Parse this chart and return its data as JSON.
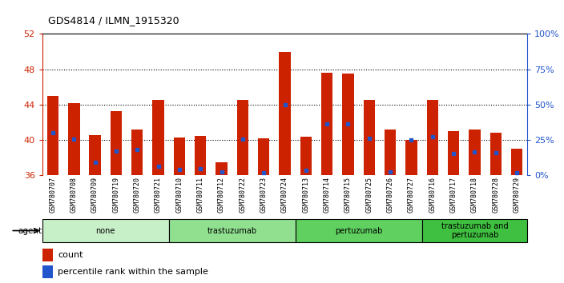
{
  "title": "GDS4814 / ILMN_1915320",
  "samples": [
    "GSM780707",
    "GSM780708",
    "GSM780709",
    "GSM780719",
    "GSM780720",
    "GSM780721",
    "GSM780710",
    "GSM780711",
    "GSM780712",
    "GSM780722",
    "GSM780723",
    "GSM780724",
    "GSM780713",
    "GSM780714",
    "GSM780715",
    "GSM780725",
    "GSM780726",
    "GSM780727",
    "GSM780716",
    "GSM780717",
    "GSM780718",
    "GSM780728",
    "GSM780729"
  ],
  "bar_heights": [
    45.0,
    44.2,
    40.6,
    43.3,
    41.2,
    44.5,
    40.3,
    40.5,
    37.5,
    44.5,
    40.2,
    50.0,
    40.4,
    47.6,
    47.5,
    44.5,
    41.2,
    40.0,
    44.5,
    41.0,
    41.2,
    40.8,
    39.0
  ],
  "blue_dot_heights": [
    40.8,
    40.1,
    37.5,
    38.8,
    38.9,
    37.0,
    36.7,
    36.8,
    36.4,
    40.1,
    36.3,
    44.0,
    36.6,
    41.8,
    41.8,
    40.2,
    36.4,
    40.0,
    40.4,
    38.5,
    38.7,
    38.6,
    36.3
  ],
  "groups": [
    {
      "label": "none",
      "start": 0,
      "end": 6,
      "color": "#c8f0c8"
    },
    {
      "label": "trastuzumab",
      "start": 6,
      "end": 12,
      "color": "#90e090"
    },
    {
      "label": "pertuzumab",
      "start": 12,
      "end": 18,
      "color": "#60d060"
    },
    {
      "label": "trastuzumab and\npertuzumab",
      "start": 18,
      "end": 23,
      "color": "#40c040"
    }
  ],
  "ylim_left": [
    36,
    52
  ],
  "yticks_left": [
    36,
    40,
    44,
    48,
    52
  ],
  "ylim_right": [
    0,
    100
  ],
  "yticks_right": [
    0,
    25,
    50,
    75,
    100
  ],
  "ytick_labels_right": [
    "0%",
    "25%",
    "50%",
    "75%",
    "100%"
  ],
  "bar_color": "#cc2200",
  "dot_color": "#2255cc",
  "bg_color": "#ffffff",
  "left_axis_color": "#cc2200",
  "right_axis_color": "#2255cc",
  "grid_yticks": [
    40,
    44,
    48
  ],
  "bar_width": 0.55
}
